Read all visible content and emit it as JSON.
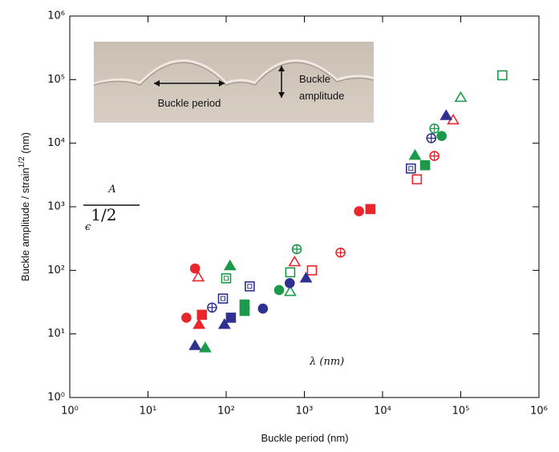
{
  "chart_data": {
    "type": "scatter",
    "xlabel": "Buckle period (nm)",
    "ylabel": {
      "text": "Buckle amplitude / strain",
      "sup": "1/2",
      "suffix": " (nm)"
    },
    "xscale": "log",
    "yscale": "log",
    "xlim": [
      1,
      1000000
    ],
    "ylim": [
      1,
      1000000
    ],
    "xticks": [
      {
        "value": 1,
        "label": "10⁰"
      },
      {
        "value": 10,
        "label": "10¹"
      },
      {
        "value": 100,
        "label": "10²"
      },
      {
        "value": 1000,
        "label": "10³"
      },
      {
        "value": 10000,
        "label": "10⁴"
      },
      {
        "value": 100000,
        "label": "10⁵"
      },
      {
        "value": 1000000,
        "label": "10⁶"
      }
    ],
    "yticks": [
      {
        "value": 1,
        "label": "10⁰"
      },
      {
        "value": 10,
        "label": "10¹"
      },
      {
        "value": 100,
        "label": "10²"
      },
      {
        "value": 1000,
        "label": "10³"
      },
      {
        "value": 10000,
        "label": "10⁴"
      },
      {
        "value": 100000,
        "label": "10⁵"
      },
      {
        "value": 1000000,
        "label": "10⁶"
      }
    ],
    "annotations": {
      "numerator": "A",
      "denominator": "ϵ",
      "exponent": "1/2",
      "lambda": "λ (nm)",
      "inset_period": "Buckle period",
      "inset_amplitude_1": "Buckle",
      "inset_amplitude_2": "amplitude"
    },
    "series": [
      {
        "color": "#e8262b",
        "marker": "circle",
        "fill": "filled",
        "x": [
          31,
          40,
          5000
        ],
        "values": [
          18,
          107,
          850
        ]
      },
      {
        "color": "#e8262b",
        "marker": "square",
        "fill": "filled",
        "x": [
          49,
          7000
        ],
        "values": [
          20,
          920
        ]
      },
      {
        "color": "#e8262b",
        "marker": "triangle",
        "fill": "open",
        "x": [
          44,
          750,
          80000
        ],
        "values": [
          78,
          135,
          23000
        ]
      },
      {
        "color": "#e8262b",
        "marker": "circle",
        "fill": "crossed",
        "x": [
          2900,
          46000
        ],
        "values": [
          190,
          6300
        ]
      },
      {
        "color": "#e8262b",
        "marker": "square",
        "fill": "open",
        "x": [
          1250,
          27500
        ],
        "values": [
          100,
          2700
        ]
      },
      {
        "color": "#e8262b",
        "marker": "triangle",
        "fill": "filled",
        "x": [
          45
        ],
        "values": [
          14
        ]
      },
      {
        "color": "#1a9a4a",
        "marker": "triangle",
        "fill": "filled",
        "x": [
          112,
          26000,
          54
        ],
        "values": [
          117,
          6400,
          6
        ]
      },
      {
        "color": "#1a9a4a",
        "marker": "triangle",
        "fill": "open",
        "x": [
          100000,
          660
        ],
        "values": [
          52000,
          46
        ]
      },
      {
        "color": "#1a9a4a",
        "marker": "circle",
        "fill": "filled",
        "x": [
          475,
          57000
        ],
        "values": [
          49,
          13000
        ]
      },
      {
        "color": "#1a9a4a",
        "marker": "circle",
        "fill": "crossed",
        "x": [
          800,
          46000
        ],
        "values": [
          215,
          17000
        ]
      },
      {
        "color": "#1a9a4a",
        "marker": "square",
        "fill": "open",
        "x": [
          660,
          340000
        ],
        "values": [
          93,
          117000
        ]
      },
      {
        "color": "#1a9a4a",
        "marker": "square",
        "fill": "filled",
        "x": [
          172,
          172,
          35000
        ],
        "values": [
          29,
          23,
          4500
        ]
      },
      {
        "color": "#1a9a4a",
        "marker": "square",
        "fill": "dotted",
        "x": [
          100
        ],
        "values": [
          75
        ]
      },
      {
        "color": "#2e3192",
        "marker": "triangle",
        "fill": "filled",
        "x": [
          40,
          95,
          1050,
          65000
        ],
        "values": [
          6.5,
          14,
          75,
          27000
        ]
      },
      {
        "color": "#2e3192",
        "marker": "circle",
        "fill": "filled",
        "x": [
          295,
          650
        ],
        "values": [
          25,
          63
        ]
      },
      {
        "color": "#2e3192",
        "marker": "circle",
        "fill": "crossed",
        "x": [
          66,
          42000
        ],
        "values": [
          26,
          12000
        ]
      },
      {
        "color": "#2e3192",
        "marker": "square",
        "fill": "dotted",
        "x": [
          91,
          200,
          23000
        ],
        "values": [
          36,
          56,
          4000
        ]
      },
      {
        "color": "#2e3192",
        "marker": "square",
        "fill": "filled",
        "x": [
          115
        ],
        "values": [
          18
        ]
      }
    ]
  }
}
